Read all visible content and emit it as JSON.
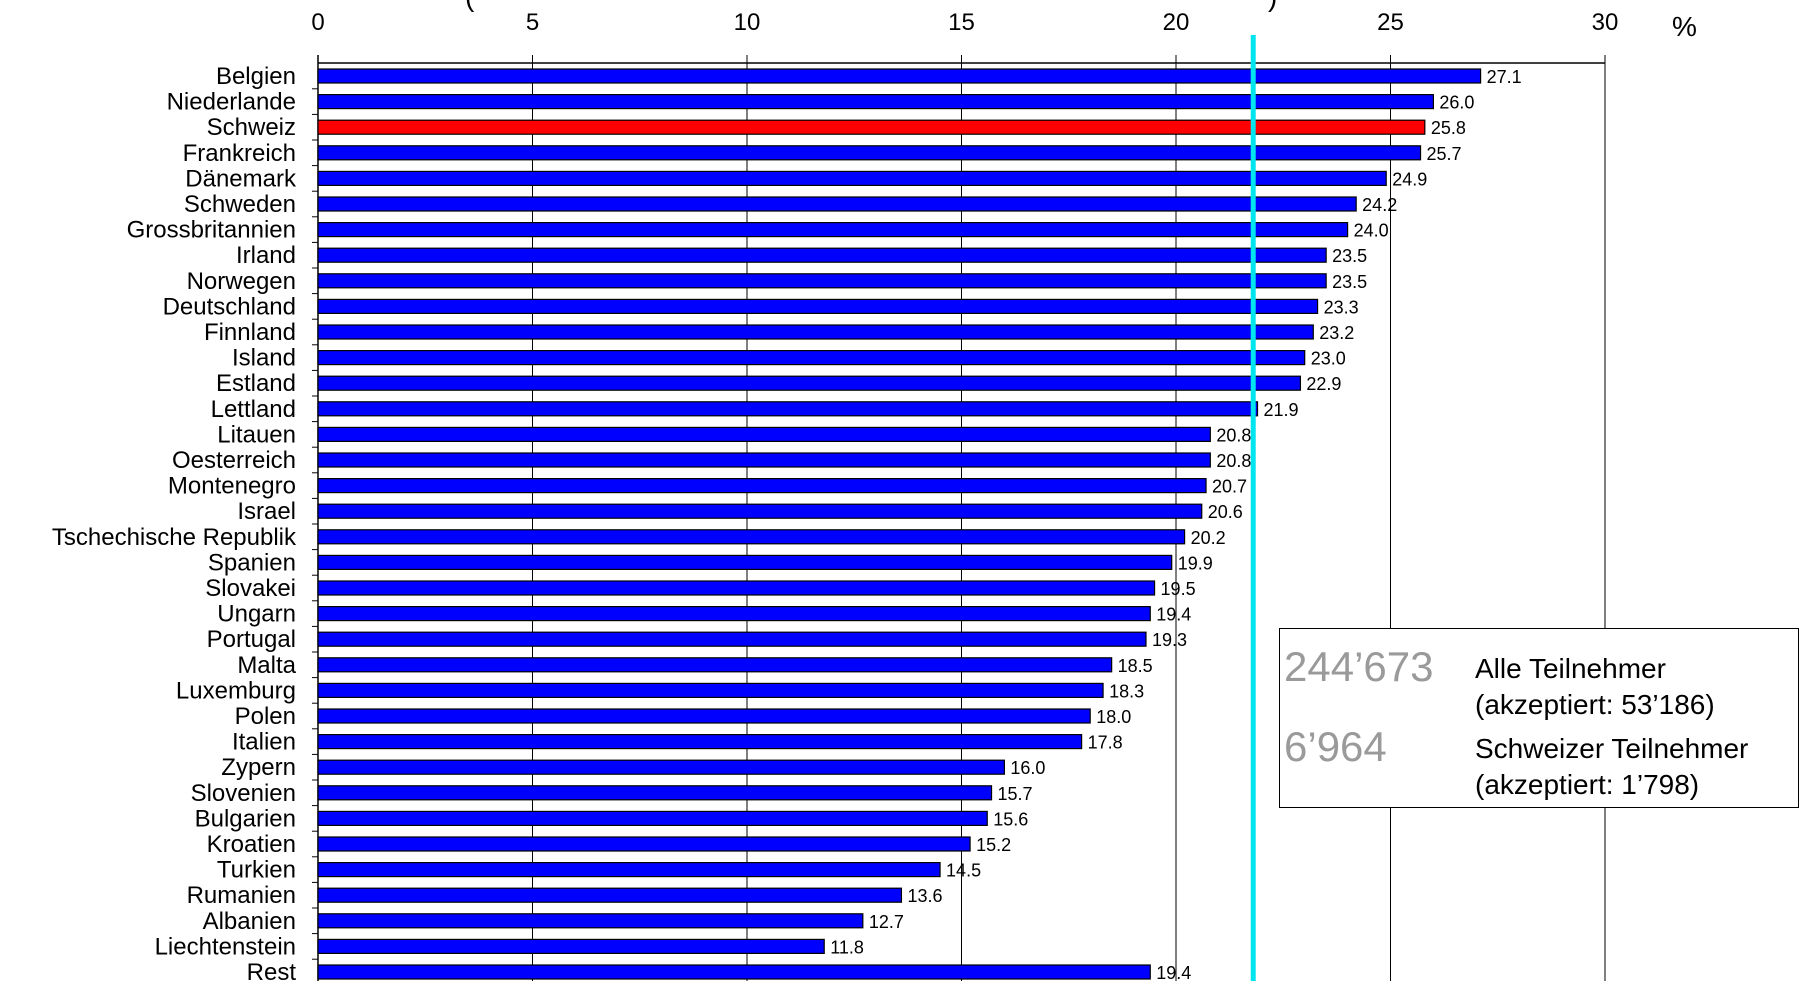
{
  "chart_data": {
    "type": "bar",
    "orientation": "horizontal",
    "title_fragments": [
      "(",
      ")"
    ],
    "unit": "%",
    "xlim": [
      0,
      30
    ],
    "xticks": [
      0,
      5,
      10,
      15,
      20,
      25,
      30
    ],
    "grid": true,
    "reference_line": {
      "value": 21.8,
      "color": "#00e5ee"
    },
    "colors": {
      "bar": "#0000ff",
      "highlight": "#ff0000"
    },
    "highlight": "Schweiz",
    "categories": [
      "Belgien",
      "Niederlande",
      "Schweiz",
      "Frankreich",
      "Dänemark",
      "Schweden",
      "Grossbritannien",
      "Irland",
      "Norwegen",
      "Deutschland",
      "Finnland",
      "Island",
      "Estland",
      "Lettland",
      "Litauen",
      "Oesterreich",
      "Montenegro",
      "Israel",
      "Tschechische Republik",
      "Spanien",
      "Slovakei",
      "Ungarn",
      "Portugal",
      "Malta",
      "Luxemburg",
      "Polen",
      "Italien",
      "Zypern",
      "Slovenien",
      "Bulgarien",
      "Kroatien",
      "Turkien",
      "Rumanien",
      "Albanien",
      "Liechtenstein",
      "Rest"
    ],
    "values": [
      27.1,
      26.0,
      25.8,
      25.7,
      24.9,
      24.2,
      24.0,
      23.5,
      23.5,
      23.3,
      23.2,
      23.0,
      22.9,
      21.9,
      20.8,
      20.8,
      20.7,
      20.6,
      20.2,
      19.9,
      19.5,
      19.4,
      19.3,
      18.5,
      18.3,
      18.0,
      17.8,
      16.0,
      15.7,
      15.6,
      15.2,
      14.5,
      13.6,
      12.7,
      11.8,
      19.4
    ],
    "value_labels": [
      "27.1",
      "26.0",
      "25.8",
      "25.7",
      "24.9",
      "24.2",
      "24.0",
      "23.5",
      "23.5",
      "23.3",
      "23.2",
      "23.0",
      "22.9",
      "21.9",
      "20.8",
      "20.8",
      "20.7",
      "20.6",
      "20.2",
      "19.9",
      "19.5",
      "19.4",
      "19.3",
      "18.5",
      "18.3",
      "18.0",
      "17.8",
      "16.0",
      "15.7",
      "15.6",
      "15.2",
      "14.5",
      "13.6",
      "12.7",
      "11.8",
      "19.4"
    ]
  },
  "legend": {
    "rows": [
      {
        "number": "244’673",
        "line1": "Alle Teilnehmer",
        "line2": "(akzeptiert: 53’186)"
      },
      {
        "number": "6’964",
        "line1": "Schweizer Teilnehmer",
        "line2": "(akzeptiert: 1’798)"
      }
    ]
  }
}
